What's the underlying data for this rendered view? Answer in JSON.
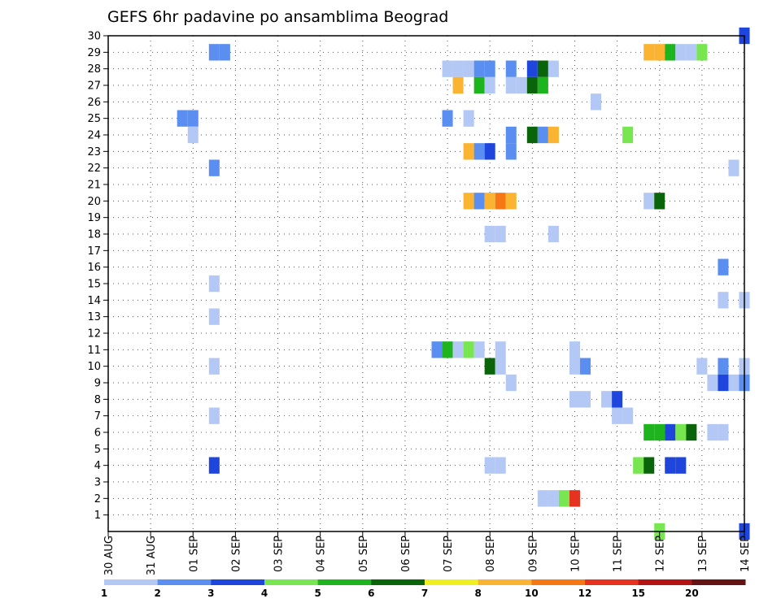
{
  "chart_data": {
    "type": "heatmap",
    "title": "GEFS 6hr padavine po ansamblima Beograd",
    "y_ticks": [
      "1",
      "2",
      "3",
      "4",
      "5",
      "6",
      "7",
      "8",
      "9",
      "10",
      "11",
      "12",
      "13",
      "14",
      "15",
      "16",
      "17",
      "18",
      "19",
      "20",
      "21",
      "22",
      "23",
      "24",
      "25",
      "26",
      "27",
      "28",
      "29",
      "30"
    ],
    "x_ticks": [
      "30 AUG",
      "31 AUG",
      "01 SEP",
      "02 SEP",
      "03 SEP",
      "04 SEP",
      "05 SEP",
      "06 SEP",
      "07 SEP",
      "08 SEP",
      "09 SEP",
      "10 SEP",
      "11 SEP",
      "12 SEP",
      "13 SEP",
      "14 SEP"
    ],
    "ylim": [
      0,
      30
    ],
    "xlim": [
      0,
      15
    ],
    "grid": true,
    "colorbar": {
      "labels": [
        "1",
        "2",
        "3",
        "4",
        "5",
        "6",
        "7",
        "8",
        "10",
        "12",
        "15",
        "20"
      ],
      "colors": [
        "#b4c8f5",
        "#5a8ef0",
        "#1e46dc",
        "#78e650",
        "#1eb41e",
        "#0a640a",
        "#f0f01e",
        "#fab432",
        "#f57814",
        "#e6321e",
        "#b41414",
        "#641414"
      ]
    },
    "cells": [
      {
        "x": 2.5,
        "y": 29,
        "c": 2
      },
      {
        "x": 2.75,
        "y": 29,
        "c": 2
      },
      {
        "x": 12.75,
        "y": 29,
        "c": 8
      },
      {
        "x": 13.0,
        "y": 29,
        "c": 8
      },
      {
        "x": 13.25,
        "y": 29,
        "c": 5
      },
      {
        "x": 13.5,
        "y": 29,
        "c": 1
      },
      {
        "x": 13.75,
        "y": 29,
        "c": 1
      },
      {
        "x": 14.0,
        "y": 29,
        "c": 4
      },
      {
        "x": 8.0,
        "y": 28,
        "c": 1
      },
      {
        "x": 8.25,
        "y": 28,
        "c": 1
      },
      {
        "x": 8.5,
        "y": 28,
        "c": 1
      },
      {
        "x": 8.75,
        "y": 28,
        "c": 2
      },
      {
        "x": 9.0,
        "y": 28,
        "c": 2
      },
      {
        "x": 9.5,
        "y": 28,
        "c": 2
      },
      {
        "x": 10.0,
        "y": 28,
        "c": 3
      },
      {
        "x": 10.25,
        "y": 28,
        "c": 6
      },
      {
        "x": 10.5,
        "y": 28,
        "c": 1
      },
      {
        "x": 8.25,
        "y": 27,
        "c": 8
      },
      {
        "x": 8.75,
        "y": 27,
        "c": 5
      },
      {
        "x": 9.0,
        "y": 27,
        "c": 1
      },
      {
        "x": 9.5,
        "y": 27,
        "c": 1
      },
      {
        "x": 9.75,
        "y": 27,
        "c": 1
      },
      {
        "x": 10.0,
        "y": 27,
        "c": 6
      },
      {
        "x": 10.25,
        "y": 27,
        "c": 5
      },
      {
        "x": 11.5,
        "y": 26,
        "c": 1
      },
      {
        "x": 1.75,
        "y": 25,
        "c": 2
      },
      {
        "x": 2.0,
        "y": 25,
        "c": 2
      },
      {
        "x": 8.0,
        "y": 25,
        "c": 2
      },
      {
        "x": 8.5,
        "y": 25,
        "c": 1
      },
      {
        "x": 2.0,
        "y": 24,
        "c": 1
      },
      {
        "x": 9.5,
        "y": 24,
        "c": 2
      },
      {
        "x": 10.0,
        "y": 24,
        "c": 6
      },
      {
        "x": 10.25,
        "y": 24,
        "c": 2
      },
      {
        "x": 10.5,
        "y": 24,
        "c": 8
      },
      {
        "x": 12.25,
        "y": 24,
        "c": 4
      },
      {
        "x": 8.5,
        "y": 23,
        "c": 8
      },
      {
        "x": 8.75,
        "y": 23,
        "c": 2
      },
      {
        "x": 9.0,
        "y": 23,
        "c": 3
      },
      {
        "x": 9.5,
        "y": 23,
        "c": 2
      },
      {
        "x": 2.5,
        "y": 22,
        "c": 2
      },
      {
        "x": 14.75,
        "y": 22,
        "c": 1
      },
      {
        "x": 8.5,
        "y": 20,
        "c": 8
      },
      {
        "x": 8.75,
        "y": 20,
        "c": 2
      },
      {
        "x": 9.0,
        "y": 20,
        "c": 8
      },
      {
        "x": 9.25,
        "y": 20,
        "c": 9
      },
      {
        "x": 9.5,
        "y": 20,
        "c": 8
      },
      {
        "x": 12.75,
        "y": 20,
        "c": 1
      },
      {
        "x": 13.0,
        "y": 20,
        "c": 6
      },
      {
        "x": 9.0,
        "y": 18,
        "c": 1
      },
      {
        "x": 9.25,
        "y": 18,
        "c": 1
      },
      {
        "x": 10.5,
        "y": 18,
        "c": 1
      },
      {
        "x": 14.5,
        "y": 16,
        "c": 2
      },
      {
        "x": 2.5,
        "y": 15,
        "c": 1
      },
      {
        "x": 14.5,
        "y": 14,
        "c": 1
      },
      {
        "x": 15.0,
        "y": 14,
        "c": 1
      },
      {
        "x": 2.5,
        "y": 13,
        "c": 1
      },
      {
        "x": 7.75,
        "y": 11,
        "c": 2
      },
      {
        "x": 8.0,
        "y": 11,
        "c": 5
      },
      {
        "x": 8.25,
        "y": 11,
        "c": 1
      },
      {
        "x": 8.5,
        "y": 11,
        "c": 4
      },
      {
        "x": 8.75,
        "y": 11,
        "c": 1
      },
      {
        "x": 9.25,
        "y": 11,
        "c": 1
      },
      {
        "x": 11.0,
        "y": 11,
        "c": 1
      },
      {
        "x": 2.5,
        "y": 10,
        "c": 1
      },
      {
        "x": 9.0,
        "y": 10,
        "c": 6
      },
      {
        "x": 9.25,
        "y": 10,
        "c": 1
      },
      {
        "x": 11.0,
        "y": 10,
        "c": 1
      },
      {
        "x": 11.25,
        "y": 10,
        "c": 2
      },
      {
        "x": 14.0,
        "y": 10,
        "c": 1
      },
      {
        "x": 14.5,
        "y": 10,
        "c": 2
      },
      {
        "x": 15.0,
        "y": 10,
        "c": 1
      },
      {
        "x": 9.5,
        "y": 9,
        "c": 1
      },
      {
        "x": 14.25,
        "y": 9,
        "c": 1
      },
      {
        "x": 14.5,
        "y": 9,
        "c": 3
      },
      {
        "x": 14.75,
        "y": 9,
        "c": 1
      },
      {
        "x": 15.0,
        "y": 9,
        "c": 2
      },
      {
        "x": 11.0,
        "y": 8,
        "c": 1
      },
      {
        "x": 11.25,
        "y": 8,
        "c": 1
      },
      {
        "x": 11.75,
        "y": 8,
        "c": 1
      },
      {
        "x": 12.0,
        "y": 8,
        "c": 3
      },
      {
        "x": 2.5,
        "y": 7,
        "c": 1
      },
      {
        "x": 12.0,
        "y": 7,
        "c": 1
      },
      {
        "x": 12.25,
        "y": 7,
        "c": 1
      },
      {
        "x": 12.75,
        "y": 6,
        "c": 5
      },
      {
        "x": 13.0,
        "y": 6,
        "c": 5
      },
      {
        "x": 13.25,
        "y": 6,
        "c": 3
      },
      {
        "x": 13.5,
        "y": 6,
        "c": 4
      },
      {
        "x": 13.75,
        "y": 6,
        "c": 6
      },
      {
        "x": 14.25,
        "y": 6,
        "c": 1
      },
      {
        "x": 14.5,
        "y": 6,
        "c": 1
      },
      {
        "x": 2.5,
        "y": 4,
        "c": 3
      },
      {
        "x": 9.0,
        "y": 4,
        "c": 1
      },
      {
        "x": 9.25,
        "y": 4,
        "c": 1
      },
      {
        "x": 12.5,
        "y": 4,
        "c": 4
      },
      {
        "x": 12.75,
        "y": 4,
        "c": 6
      },
      {
        "x": 13.25,
        "y": 4,
        "c": 3
      },
      {
        "x": 13.5,
        "y": 4,
        "c": 3
      },
      {
        "x": 10.25,
        "y": 2,
        "c": 1
      },
      {
        "x": 10.5,
        "y": 2,
        "c": 1
      },
      {
        "x": 10.75,
        "y": 2,
        "c": 4
      },
      {
        "x": 11.0,
        "y": 2,
        "c": 10
      },
      {
        "x": 13.0,
        "y": 0,
        "c": 4
      },
      {
        "x": 15.0,
        "y": 0,
        "c": 3
      },
      {
        "x": 15.0,
        "y": 30,
        "c": 3
      }
    ]
  }
}
